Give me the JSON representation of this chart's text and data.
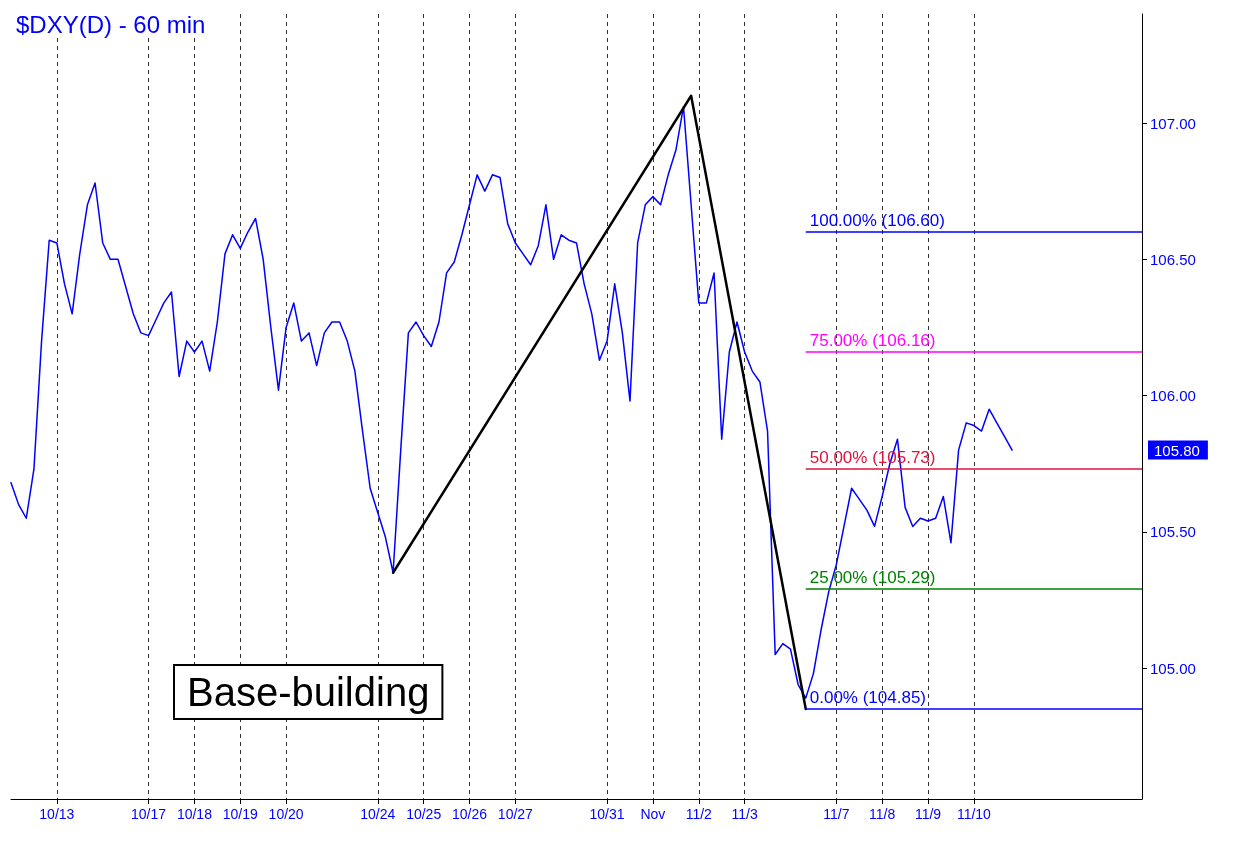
{
  "chart_data": {
    "type": "line",
    "title": "$DXY(D) - 60 min",
    "categories": [
      null,
      null,
      null,
      null,
      null,
      null,
      "10/13",
      null,
      null,
      null,
      null,
      null,
      null,
      null,
      null,
      null,
      null,
      null,
      "10/17",
      null,
      null,
      null,
      null,
      null,
      "10/18",
      null,
      null,
      null,
      null,
      null,
      "10/19",
      null,
      null,
      null,
      null,
      null,
      "10/20",
      null,
      null,
      null,
      null,
      null,
      null,
      null,
      null,
      null,
      null,
      null,
      "10/24",
      null,
      null,
      null,
      null,
      null,
      "10/25",
      null,
      null,
      null,
      null,
      null,
      "10/26",
      null,
      null,
      null,
      null,
      null,
      "10/27",
      null,
      null,
      null,
      null,
      null,
      null,
      null,
      null,
      null,
      null,
      null,
      "10/31",
      null,
      null,
      null,
      null,
      null,
      "Nov",
      null,
      null,
      null,
      null,
      null,
      "11/2",
      null,
      null,
      null,
      null,
      null,
      "11/3",
      null,
      null,
      null,
      null,
      null,
      null,
      null,
      null,
      null,
      null,
      null,
      "11/7",
      null,
      null,
      null,
      null,
      null,
      "11/8",
      null,
      null,
      null,
      null,
      null,
      "11/9",
      null,
      null,
      null,
      null,
      null,
      "11/10",
      null,
      null,
      null,
      null,
      null,
      null,
      null,
      null,
      null,
      null,
      null,
      null,
      null,
      null,
      null,
      null,
      null,
      null,
      null,
      null,
      null,
      null
    ],
    "ylim": [
      104.52,
      107.4
    ],
    "yticks": [
      {
        "value": 105,
        "label": "105.00"
      },
      {
        "value": 105.5,
        "label": "105.50"
      },
      {
        "value": 106,
        "label": "106.00"
      },
      {
        "value": 106.5,
        "label": "106.50"
      },
      {
        "value": 107,
        "label": "107.00"
      }
    ],
    "grid": "x",
    "marker": "none",
    "line_style": "solid",
    "series": [
      {
        "color": "#0000ff",
        "values": [
          105.68,
          105.6,
          105.55,
          105.73,
          106.2,
          106.57,
          106.56,
          106.41,
          106.3,
          106.52,
          106.7,
          106.78,
          106.56,
          106.5,
          106.5,
          106.4,
          106.3,
          106.23,
          106.22,
          106.28,
          106.34,
          106.38,
          106.07,
          106.2,
          106.16,
          106.2,
          106.09,
          106.27,
          106.52,
          106.59,
          106.54,
          106.6,
          106.65,
          106.5,
          106.25,
          106.02,
          106.25,
          106.34,
          106.2,
          106.23,
          106.11,
          106.23,
          106.27,
          106.27,
          106.2,
          106.09,
          105.87,
          105.66,
          105.57,
          105.48,
          105.35,
          105.8,
          106.23,
          106.27,
          106.22,
          106.18,
          106.27,
          106.45,
          106.49,
          106.59,
          106.7,
          106.81,
          106.75,
          106.81,
          106.8,
          106.63,
          106.56,
          106.52,
          106.48,
          106.55,
          106.7,
          106.5,
          106.59,
          106.57,
          106.56,
          106.41,
          106.3,
          106.13,
          106.2,
          106.41,
          106.23,
          105.98,
          106.56,
          106.7,
          106.73,
          106.7,
          106.81,
          106.9,
          107.06,
          106.7,
          106.34,
          106.34,
          106.45,
          105.84,
          106.16,
          106.27,
          106.16,
          106.09,
          106.05,
          105.87,
          105.05,
          105.09,
          105.07,
          104.94,
          104.89,
          104.98,
          105.14,
          105.28,
          105.38,
          105.52,
          105.66,
          105.62,
          105.58,
          105.52,
          105.63,
          105.75,
          105.84,
          105.59,
          105.52,
          105.55,
          105.54,
          105.55,
          105.63,
          105.46,
          105.8,
          105.9,
          105.89,
          105.87,
          105.95,
          105.9,
          105.85,
          105.8,
          null,
          null,
          null,
          null,
          null,
          null,
          null,
          null,
          null,
          null,
          null,
          null,
          null,
          null,
          null,
          null,
          null
        ]
      },
      {
        "color": "#000000",
        "values": [
          null,
          null,
          null,
          null,
          null,
          null,
          null,
          null,
          null,
          null,
          null,
          null,
          null,
          null,
          null,
          null,
          null,
          null,
          null,
          null,
          null,
          null,
          null,
          null,
          null,
          null,
          null,
          null,
          null,
          null,
          null,
          null,
          null,
          null,
          null,
          null,
          null,
          null,
          null,
          null,
          null,
          null,
          null,
          null,
          null,
          null,
          null,
          null,
          null,
          null,
          105.35,
          null,
          null,
          null,
          null,
          null,
          null,
          null,
          null,
          null,
          null,
          null,
          null,
          null,
          null,
          null,
          null,
          null,
          null,
          null,
          null,
          null,
          null,
          null,
          null,
          null,
          null,
          null,
          null,
          null,
          null,
          null,
          null,
          null,
          null,
          null,
          null,
          null,
          null,
          107.1,
          null,
          null,
          null,
          null,
          null,
          null,
          null,
          null,
          null,
          null,
          null,
          null,
          null,
          null,
          104.85,
          null,
          null,
          null,
          null,
          null,
          null,
          null,
          null,
          null,
          null,
          null,
          null,
          null,
          null,
          null,
          null,
          null,
          null,
          null,
          null,
          null,
          null,
          null,
          null,
          null,
          null,
          null,
          null,
          null,
          null,
          null,
          null,
          null,
          null,
          null,
          null,
          null,
          null,
          null,
          null,
          null,
          null,
          null,
          null
        ]
      }
    ],
    "ref_lines": [
      {
        "axis": "y",
        "value": 106.6,
        "label": "100.00% (106.60)",
        "color": "#0000ff"
      },
      {
        "axis": "y",
        "value": 106.16,
        "label": "75.00% (106.16)",
        "color": "#ff00ff"
      },
      {
        "axis": "y",
        "value": 105.73,
        "label": "50.00% (105.73)",
        "color": "#dc143c"
      },
      {
        "axis": "y",
        "value": 105.29,
        "label": "25.00% (105.29)",
        "color": "#008000"
      },
      {
        "axis": "y",
        "value": 104.85,
        "label": "0.00% (104.85)",
        "color": "#0000ff"
      }
    ],
    "annotations": [
      "Base-building",
      "105.80"
    ]
  }
}
